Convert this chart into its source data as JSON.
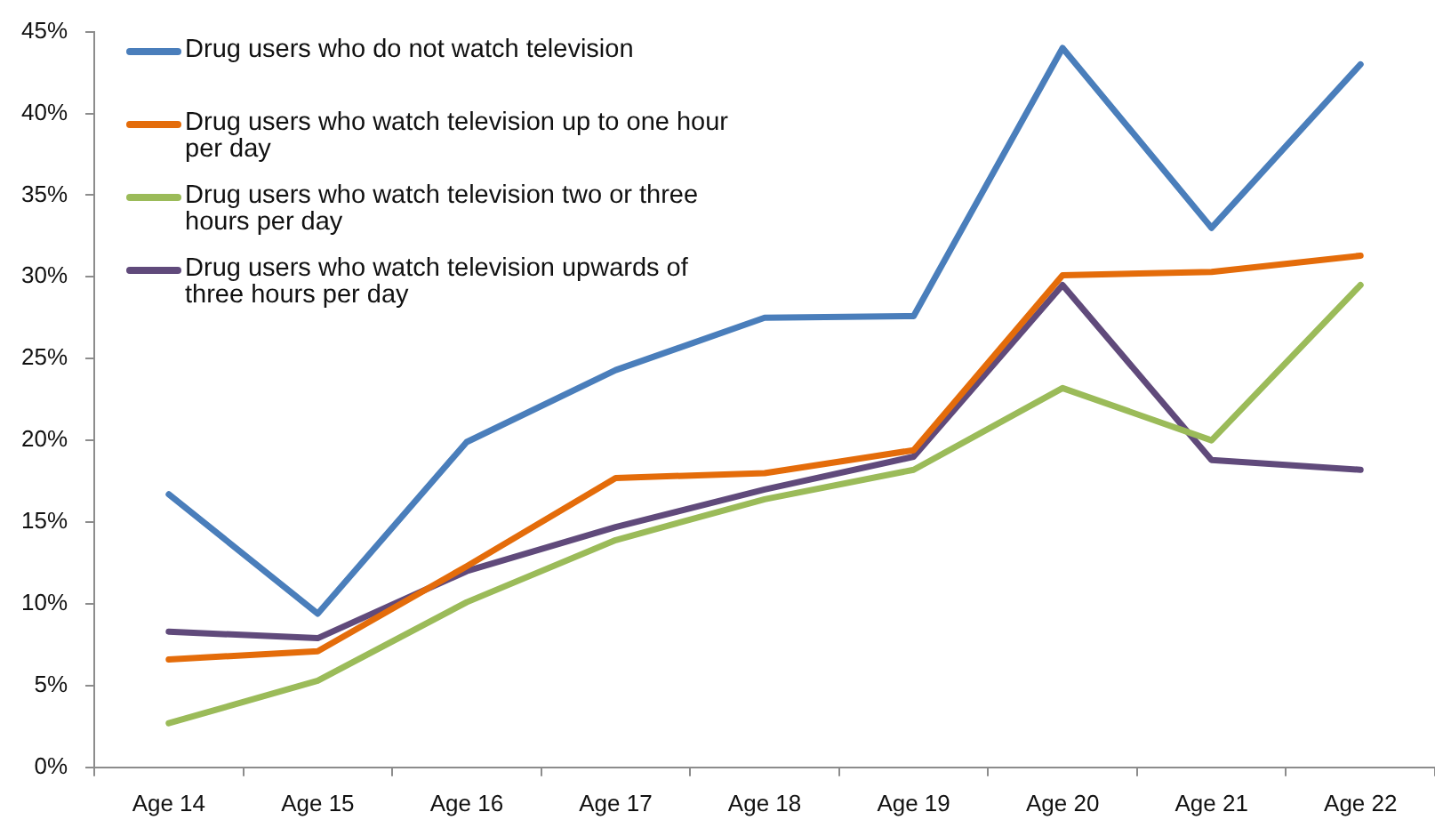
{
  "chart_data": {
    "type": "line",
    "categories": [
      "Age 14",
      "Age 15",
      "Age 16",
      "Age 17",
      "Age 18",
      "Age 19",
      "Age 20",
      "Age 21",
      "Age 22"
    ],
    "series": [
      {
        "name": "Drug users who do not watch television",
        "color": "#4a7ebb",
        "values": [
          16.7,
          9.4,
          19.9,
          24.3,
          27.5,
          27.6,
          44.0,
          33.0,
          43.0
        ]
      },
      {
        "name": "Drug users who watch television up to one hour per day",
        "color": "#e46c0a",
        "values": [
          6.6,
          7.1,
          12.3,
          17.7,
          18.0,
          19.4,
          30.1,
          30.3,
          31.3
        ]
      },
      {
        "name": "Drug users who watch television two or three hours per day",
        "color": "#9bbb59",
        "values": [
          2.7,
          5.3,
          10.1,
          13.9,
          16.4,
          18.2,
          23.2,
          20.0,
          29.5
        ]
      },
      {
        "name": "Drug users who watch television upwards of three hours per day",
        "color": "#604a7b",
        "values": [
          8.3,
          7.9,
          12.0,
          14.7,
          17.0,
          19.0,
          29.5,
          18.8,
          18.2
        ]
      }
    ],
    "ylim": [
      0,
      45
    ],
    "yticks": [
      {
        "value": 0,
        "label": "0%"
      },
      {
        "value": 5,
        "label": "5%"
      },
      {
        "value": 10,
        "label": "10%"
      },
      {
        "value": 15,
        "label": "15%"
      },
      {
        "value": 20,
        "label": "20%"
      },
      {
        "value": 25,
        "label": "25%"
      },
      {
        "value": 30,
        "label": "30%"
      },
      {
        "value": 35,
        "label": "35%"
      },
      {
        "value": 40,
        "label": "40%"
      },
      {
        "value": 45,
        "label": "45%"
      }
    ],
    "grid": false,
    "legend": "top left",
    "marker": "none",
    "line_style": "solid"
  }
}
